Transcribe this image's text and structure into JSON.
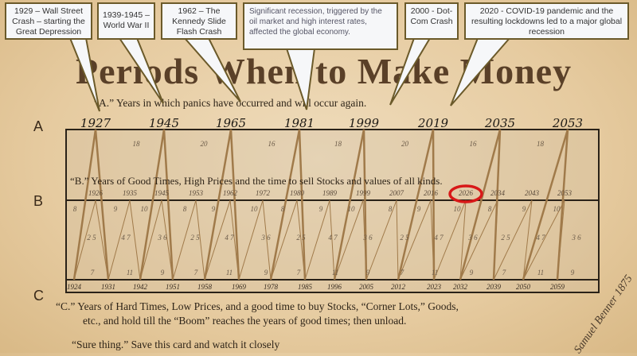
{
  "title": "Periods When to Make Money",
  "line_a": "“A.” Years in which panics have occurred and will occur again.",
  "line_b": "“B.” Years of Good Times, High Prices and the time to sell Stocks and values of all kinds.",
  "line_c1": "“C.”   Years of Hard Times, Low Prices, and a good time to buy Stocks, “Corner Lots,” Goods,",
  "line_c2": "etc., and hold till  the “Boom” reaches the years of good times; then unload.",
  "footer": "“Sure thing.” Save this card and watch it closely",
  "signature": "Samuel Benner 1875",
  "hands": [
    "A",
    "B",
    "C"
  ],
  "years_a": [
    "1927",
    "1945",
    "1965",
    "1981",
    "1999",
    "2019",
    "2035",
    "2053"
  ],
  "intervals_a": [
    "18",
    "20",
    "16",
    "18",
    "20",
    "16",
    "18"
  ],
  "years_b": [
    "1926",
    "1935",
    "1945",
    "1953",
    "1962",
    "1972",
    "1980",
    "1989",
    "1999",
    "2007",
    "2016",
    "2026",
    "2034",
    "2043",
    "2053"
  ],
  "highlighted_year_b": "2026",
  "years_c": [
    "1924",
    "1931",
    "1942",
    "1951",
    "1958",
    "1969",
    "1978",
    "1985",
    "1996",
    "2005",
    "2012",
    "2023",
    "2032",
    "2039",
    "2050",
    "2059"
  ],
  "intervals_top": [
    "8",
    "9",
    "10",
    "8",
    "9",
    "10",
    "8",
    "9",
    "10",
    "8",
    "9",
    "10",
    "8",
    "9",
    "10"
  ],
  "intervals_mid": [
    "2 5",
    "4 7",
    "3 6",
    "2 5",
    "4 7",
    "3 6",
    "2 5",
    "4 7",
    "3 6",
    "2 5",
    "4 7",
    "3 6",
    "2 5",
    "4 7",
    "3 6"
  ],
  "intervals_bottom": [
    "7",
    "11",
    "9",
    "7",
    "11",
    "9",
    "7",
    "11",
    "9",
    "7",
    "11",
    "9",
    "7",
    "11",
    "9"
  ],
  "callouts": [
    "1929 – Wall Street Crash – starting the Great Depression",
    "1939-1945 – World War II",
    "1962 – The Kennedy Slide Flash Crash",
    "Significant recession, triggered by the oil market and high interest rates, affected the global economy.",
    "2000 - Dot-Com Crash",
    "2020 - COVID-19 pandemic and the resulting lockdowns led to a major global recession"
  ],
  "colors": {
    "lines": "#a07a4a",
    "box": "#2a2218",
    "highlight": "#d81818",
    "callout_border": "#6b5a2a"
  }
}
